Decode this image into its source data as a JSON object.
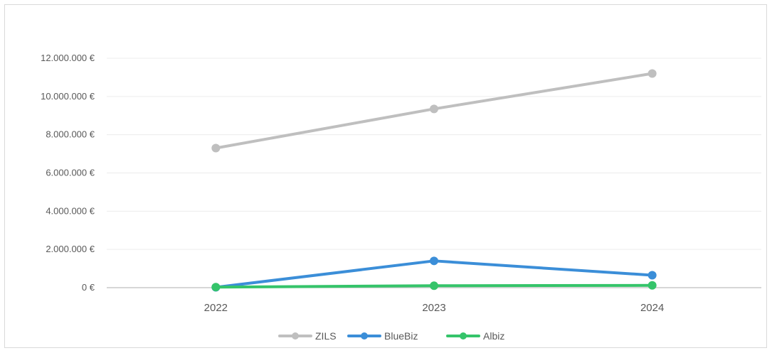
{
  "chart_data": {
    "type": "line",
    "categories": [
      "2022",
      "2023",
      "2024"
    ],
    "series": [
      {
        "name": "ZILS",
        "values": [
          7300000,
          9350000,
          11200000
        ],
        "color": "#bfbfbf"
      },
      {
        "name": "BlueBiz",
        "values": [
          20000,
          1400000,
          650000
        ],
        "color": "#3b8ed8"
      },
      {
        "name": "Albiz",
        "values": [
          30000,
          100000,
          120000
        ],
        "color": "#35c46a"
      }
    ],
    "y_ticks": [
      {
        "value": 0,
        "label": "0 €"
      },
      {
        "value": 2000000,
        "label": "2.000.000 €"
      },
      {
        "value": 4000000,
        "label": "4.000.000 €"
      },
      {
        "value": 6000000,
        "label": "6.000.000 €"
      },
      {
        "value": 8000000,
        "label": "8.000.000 €"
      },
      {
        "value": 10000000,
        "label": "10.000.000 €"
      },
      {
        "value": 12000000,
        "label": "12.000.000 €"
      }
    ],
    "ylim": [
      0,
      12000000
    ],
    "grid": true,
    "legend": "bottom",
    "title": "",
    "xlabel": "",
    "ylabel": ""
  }
}
